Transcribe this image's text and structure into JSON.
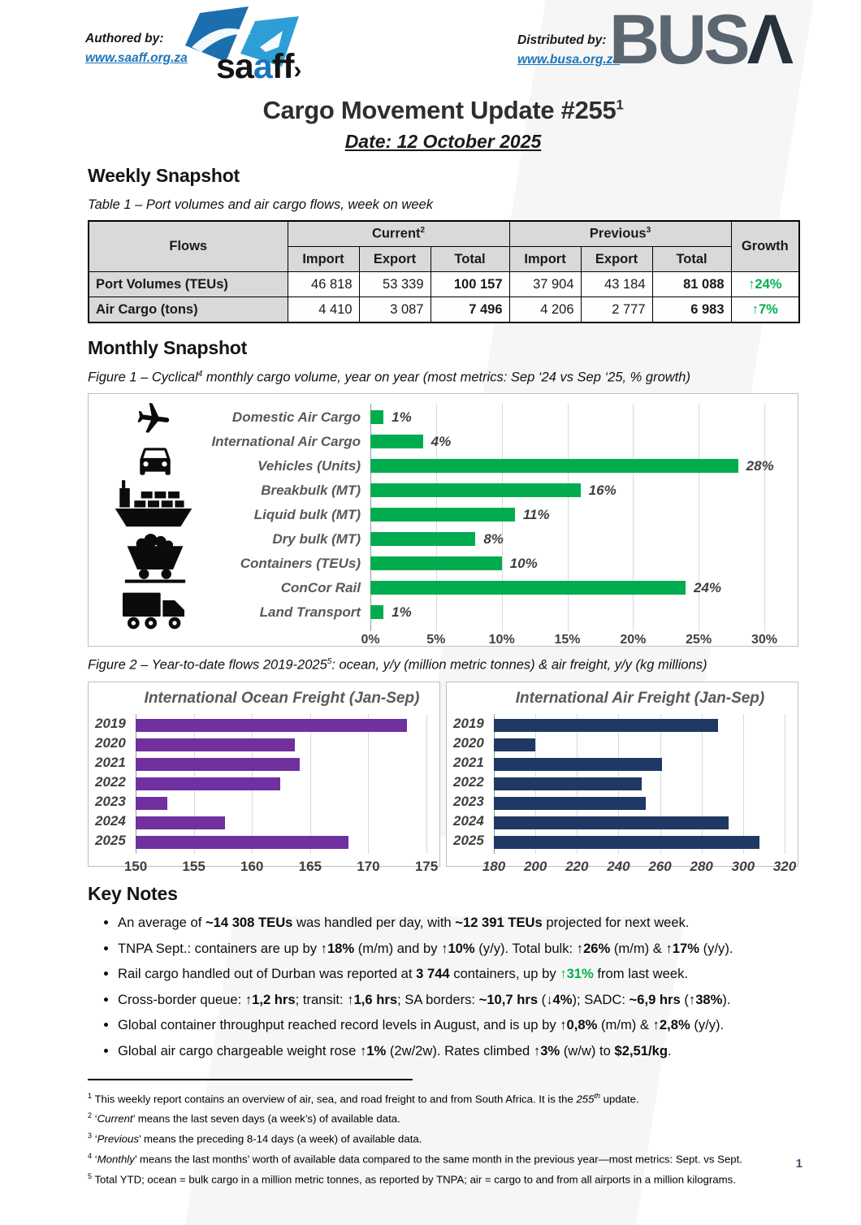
{
  "header": {
    "authored_label": "Authored by:",
    "authored_link": "www.saaff.org.za",
    "distributed_label": "Distributed by:",
    "distributed_link": "www.busa.org.za",
    "saaff_word": {
      "p1": "sa",
      "p2": "a",
      "p3": "ff"
    },
    "busa_word": {
      "p1": "BUS",
      "p2": "Λ"
    }
  },
  "title": {
    "main": "Cargo Movement Update #255",
    "sup": "1"
  },
  "date_line": "Date: 12 October 2025",
  "weekly": {
    "heading": "Weekly Snapshot",
    "table_caption": "Table 1 – Port volumes and air cargo flows, week on week",
    "table": {
      "col_flows": "Flows",
      "col_current": "Current",
      "col_current_sup": "2",
      "col_previous": "Previous",
      "col_previous_sup": "3",
      "col_growth": "Growth",
      "subheaders": [
        "Import",
        "Export",
        "Total",
        "Import",
        "Export",
        "Total"
      ],
      "rows": [
        {
          "label": "Port Volumes (TEUs)",
          "current": [
            "46 818",
            "53 339",
            "100 157"
          ],
          "previous": [
            "37 904",
            "43 184",
            "81 088"
          ],
          "growth": "↑24%"
        },
        {
          "label": "Air Cargo (tons)",
          "current": [
            "4 410",
            "3 087",
            "7 496"
          ],
          "previous": [
            "4 206",
            "2 777",
            "6 983"
          ],
          "growth": "↑7%"
        }
      ]
    }
  },
  "monthly": {
    "heading": "Monthly Snapshot",
    "fig1_caption": {
      "pre": "Figure 1 – Cyclical",
      "sup": "4",
      "post": " monthly cargo volume, year on year (most metrics: Sep ‘24 vs Sep ‘25, % growth)"
    },
    "fig2_caption": {
      "pre": "Figure 2 – Year-to-date flows 2019-2025",
      "sup": "5",
      "post": ": ocean, y/y (million metric tonnes) & air freight, y/y (kg millions)"
    }
  },
  "chart_data": [
    {
      "type": "bar",
      "orientation": "horizontal",
      "title": "Cyclical monthly cargo volume, year on year (% growth)",
      "categories": [
        "Domestic Air Cargo",
        "International Air Cargo",
        "Vehicles (Units)",
        "Breakbulk (MT)",
        "Liquid bulk (MT)",
        "Dry bulk (MT)",
        "Containers (TEUs)",
        "ConCor Rail",
        "Land Transport"
      ],
      "values": [
        1,
        4,
        28,
        16,
        11,
        8,
        10,
        24,
        1
      ],
      "labels": [
        "1%",
        "4%",
        "28%",
        "16%",
        "11%",
        "8%",
        "10%",
        "24%",
        "1%"
      ],
      "xticks": [
        "0%",
        "5%",
        "10%",
        "15%",
        "20%",
        "25%",
        "30%"
      ],
      "xlim": [
        0,
        30
      ],
      "grid": true,
      "bar_color": "#00AC4E",
      "icons": [
        "airplane",
        "car",
        "ship",
        "mine-cart",
        "truck"
      ]
    },
    {
      "type": "bar",
      "orientation": "horizontal",
      "title": "International Ocean Freight (Jan-Sep)",
      "categories": [
        "2019",
        "2020",
        "2021",
        "2022",
        "2023",
        "2024",
        "2025"
      ],
      "values": [
        173.3,
        163.7,
        164.1,
        162.4,
        152.7,
        157.7,
        168.3
      ],
      "xticks": [
        "150",
        "155",
        "160",
        "165",
        "170",
        "175"
      ],
      "xlim": [
        150,
        175
      ],
      "grid": true,
      "bar_color": "#7030A0"
    },
    {
      "type": "bar",
      "orientation": "horizontal",
      "title": "International Air Freight (Jan-Sep)",
      "categories": [
        "2019",
        "2020",
        "2021",
        "2022",
        "2023",
        "2024",
        "2025"
      ],
      "values": [
        288,
        200,
        261,
        251,
        253,
        293,
        308
      ],
      "xticks": [
        "180",
        "200",
        "220",
        "240",
        "260",
        "280",
        "300",
        "320"
      ],
      "xlim": [
        180,
        320
      ],
      "grid": true,
      "bar_color": "#1F3864"
    }
  ],
  "key_notes": {
    "heading": "Key Notes",
    "bullets": [
      [
        {
          "t": "An average of "
        },
        {
          "t": "~14 308 TEUs",
          "b": 1
        },
        {
          "t": " was handled per day, with "
        },
        {
          "t": "~12 391 TEUs",
          "b": 1
        },
        {
          "t": " projected for next week."
        }
      ],
      [
        {
          "t": "TNPA Sept.: containers are up by "
        },
        {
          "t": "↑18%",
          "b": 1
        },
        {
          "t": " (m/m) and by "
        },
        {
          "t": "↑10%",
          "b": 1
        },
        {
          "t": " (y/y). Total bulk: "
        },
        {
          "t": "↑26%",
          "b": 1
        },
        {
          "t": " (m/m) & "
        },
        {
          "t": "↑17%",
          "b": 1
        },
        {
          "t": " (y/y)."
        }
      ],
      [
        {
          "t": "Rail cargo handled out of Durban was reported at "
        },
        {
          "t": "3 744",
          "b": 1
        },
        {
          "t": " containers, up by "
        },
        {
          "t": "↑31%",
          "b": 1,
          "c": "green"
        },
        {
          "t": " from last week."
        }
      ],
      [
        {
          "t": "Cross-border queue: "
        },
        {
          "t": "↑1,2 hrs",
          "b": 1
        },
        {
          "t": "; transit: "
        },
        {
          "t": "↑1,6 hrs",
          "b": 1
        },
        {
          "t": "; SA borders: "
        },
        {
          "t": "~10,7 hrs",
          "b": 1
        },
        {
          "t": " ("
        },
        {
          "t": "↓4%",
          "b": 1
        },
        {
          "t": "); SADC: "
        },
        {
          "t": "~6,9 hrs",
          "b": 1
        },
        {
          "t": " ("
        },
        {
          "t": "↑38%",
          "b": 1
        },
        {
          "t": ")."
        }
      ],
      [
        {
          "t": "Global container throughput reached record levels in August, and is up by "
        },
        {
          "t": "↑0,8%",
          "b": 1
        },
        {
          "t": " (m/m) & "
        },
        {
          "t": "↑2,8%",
          "b": 1
        },
        {
          "t": " (y/y)."
        }
      ],
      [
        {
          "t": "Global air cargo chargeable weight rose "
        },
        {
          "t": "↑1%",
          "b": 1
        },
        {
          "t": " (2w/2w). Rates climbed "
        },
        {
          "t": "↑3%",
          "b": 1
        },
        {
          "t": " (w/w) to "
        },
        {
          "t": "$2,51/kg",
          "b": 1
        },
        {
          "t": "."
        }
      ]
    ]
  },
  "footnotes": [
    {
      "sup": "1",
      "segs": [
        {
          "t": "This weekly report contains an overview of air, sea, and road freight to and from South Africa. It is the "
        },
        {
          "t": "255",
          "i": 1
        },
        {
          "t": "th",
          "i": 1,
          "sup": 1
        },
        {
          "t": " update."
        }
      ]
    },
    {
      "sup": "2",
      "segs": [
        {
          "t": "‘"
        },
        {
          "t": "Current",
          "i": 1
        },
        {
          "t": "’ means the last seven days (a week’s) of available data."
        }
      ]
    },
    {
      "sup": "3",
      "segs": [
        {
          "t": "‘"
        },
        {
          "t": "Previous",
          "i": 1
        },
        {
          "t": "’ means the preceding 8-14 days (a week) of available data."
        }
      ]
    },
    {
      "sup": "4",
      "segs": [
        {
          "t": "‘"
        },
        {
          "t": "Monthly",
          "i": 1
        },
        {
          "t": "’ means the last months’ worth of available data compared to the same month in the previous year—most metrics: Sept. vs Sept."
        }
      ]
    },
    {
      "sup": "5",
      "segs": [
        {
          "t": "Total YTD; ocean = bulk cargo in a million metric tonnes, as reported by TNPA; air = cargo to and from all airports in a million kilograms."
        }
      ]
    }
  ],
  "page_number": "1",
  "colors": {
    "green": "#00B050",
    "bar_green": "#00AC4E",
    "purple": "#7030A0",
    "navy": "#1F3864",
    "link_blue": "#1B75BB",
    "table_header_bg": "#D9D9D9"
  }
}
